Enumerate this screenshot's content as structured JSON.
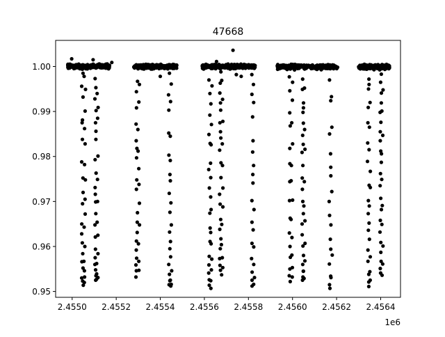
{
  "chart_data": {
    "type": "scatter",
    "title": "47668",
    "xlabel": "",
    "ylabel": "",
    "x_offset_label": "1e6",
    "xlim": [
      2454925,
      2456490
    ],
    "ylim": [
      0.9487,
      1.0058
    ],
    "xticks": [
      {
        "value": 2455000,
        "label": "2.4550"
      },
      {
        "value": 2455200,
        "label": "2.4552"
      },
      {
        "value": 2455400,
        "label": "2.4554"
      },
      {
        "value": 2455600,
        "label": "2.4556"
      },
      {
        "value": 2455800,
        "label": "2.4558"
      },
      {
        "value": 2456000,
        "label": "2.4560"
      },
      {
        "value": 2456200,
        "label": "2.4562"
      },
      {
        "value": 2456400,
        "label": "2.4564"
      }
    ],
    "yticks": [
      {
        "value": 0.95,
        "label": "0.95"
      },
      {
        "value": 0.96,
        "label": "0.96"
      },
      {
        "value": 0.97,
        "label": "0.97"
      },
      {
        "value": 0.98,
        "label": "0.98"
      },
      {
        "value": 0.99,
        "label": "0.99"
      },
      {
        "value": 1.0,
        "label": "1.00"
      }
    ],
    "grid": false,
    "marker_color": "#000000",
    "observing_seasons": [
      {
        "x_range": [
          2454980,
          2455170
        ],
        "y_center": 1.0
      },
      {
        "x_range": [
          2455280,
          2455475
        ],
        "y_center": 1.0
      },
      {
        "x_range": [
          2455590,
          2455830
        ],
        "y_center": 1.0
      },
      {
        "x_range": [
          2455930,
          2456205
        ],
        "y_center": 0.9999
      },
      {
        "x_range": [
          2456300,
          2456440
        ],
        "y_center": 0.9999
      }
    ],
    "outliers": [
      {
        "x": 2455730,
        "y": 1.0036
      },
      {
        "x": 2454998,
        "y": 1.0017
      },
      {
        "x": 2455095,
        "y": 1.0015
      },
      {
        "x": 2455180,
        "y": 1.0009
      },
      {
        "x": 2455655,
        "y": 1.0011
      },
      {
        "x": 2455767,
        "y": 0.9978
      },
      {
        "x": 2455745,
        "y": 0.9982
      },
      {
        "x": 2455400,
        "y": 0.9978
      }
    ],
    "transit_points": [
      {
        "x": 2455047,
        "y": [
          0.9985,
          0.9956,
          0.9932,
          0.9881,
          0.9875,
          0.9838,
          0.9788,
          0.9752,
          0.972,
          0.9695,
          0.965,
          0.9628,
          0.9608,
          0.9584,
          0.9566,
          0.9552,
          0.953,
          0.9523,
          0.9514
        ]
      },
      {
        "x": 2455057,
        "y": [
          0.9978,
          0.9949,
          0.9901,
          0.9862,
          0.9828,
          0.9782,
          0.9748,
          0.9705,
          0.9672,
          0.9643,
          0.96,
          0.9567,
          0.9546,
          0.9532,
          0.952
        ]
      },
      {
        "x": 2455107,
        "y": [
          0.9973,
          0.9953,
          0.9928,
          0.9902,
          0.9875,
          0.9856,
          0.9838,
          0.9793,
          0.9763,
          0.9731,
          0.9716,
          0.9699,
          0.9673,
          0.9648,
          0.9621,
          0.9594,
          0.9575,
          0.956,
          0.9548,
          0.9535,
          0.9527,
          0.9525
        ]
      },
      {
        "x": 2455114,
        "y": [
          0.994,
          0.9909,
          0.9885,
          0.9801,
          0.9749,
          0.97,
          0.9654,
          0.9625,
          0.9584,
          0.9562,
          0.9539,
          0.9531
        ]
      },
      {
        "x": 2455293,
        "y": [
          0.9967,
          0.9944,
          0.9908,
          0.9872,
          0.9835,
          0.9818,
          0.9797,
          0.9748,
          0.9727,
          0.9675,
          0.9654,
          0.9631,
          0.9612,
          0.9592,
          0.9574,
          0.9559,
          0.9546,
          0.9532
        ]
      },
      {
        "x": 2455302,
        "y": [
          0.996,
          0.9921,
          0.986,
          0.9812,
          0.9773,
          0.9738,
          0.9696,
          0.9648,
          0.9606,
          0.9567,
          0.9547
        ]
      },
      {
        "x": 2455440,
        "y": [
          0.9985,
          0.9937,
          0.9903,
          0.9852,
          0.9803,
          0.976,
          0.9718,
          0.9676,
          0.9632,
          0.9595,
          0.956,
          0.9538,
          0.9524,
          0.9515
        ]
      },
      {
        "x": 2455448,
        "y": [
          0.9961,
          0.9922,
          0.9845,
          0.9791,
          0.9746,
          0.9697,
          0.9648,
          0.9611,
          0.9577,
          0.9546,
          0.9525,
          0.9516,
          0.9512
        ]
      },
      {
        "x": 2455623,
        "y": [
          0.997,
          0.994,
          0.9892,
          0.9849,
          0.9829,
          0.9771,
          0.973,
          0.9674,
          0.9641,
          0.9611,
          0.9578,
          0.9559,
          0.9541,
          0.9526,
          0.9514
        ]
      },
      {
        "x": 2455631,
        "y": [
          0.9957,
          0.9917,
          0.9871,
          0.9826,
          0.9785,
          0.9753,
          0.971,
          0.9682,
          0.9631,
          0.9606,
          0.9572,
          0.9548,
          0.9524,
          0.9507
        ]
      },
      {
        "x": 2455672,
        "y": [
          0.9988,
          0.9963,
          0.9941,
          0.9919,
          0.9903,
          0.9875,
          0.9855,
          0.9841,
          0.9814,
          0.9786,
          0.9753,
          0.9716,
          0.9694,
          0.966,
          0.9638,
          0.9617,
          0.9595,
          0.9573,
          0.9558,
          0.9547
        ]
      },
      {
        "x": 2455681,
        "y": [
          0.9969,
          0.9927,
          0.9878,
          0.9828,
          0.978,
          0.973,
          0.9688,
          0.9649,
          0.9604,
          0.9575,
          0.9553,
          0.9537
        ]
      },
      {
        "x": 2455817,
        "y": [
          0.9982,
          0.9938,
          0.9888,
          0.981,
          0.976,
          0.9702,
          0.9654,
          0.9607,
          0.9573,
          0.9543,
          0.9525,
          0.9512
        ]
      },
      {
        "x": 2455824,
        "y": [
          0.996,
          0.992,
          0.9835,
          0.978,
          0.9741,
          0.9682,
          0.9637,
          0.9599,
          0.956,
          0.9531,
          0.9516
        ]
      },
      {
        "x": 2455988,
        "y": [
          0.9977,
          0.9946,
          0.9897,
          0.9868,
          0.9818,
          0.9784,
          0.9744,
          0.9702,
          0.9663,
          0.963,
          0.96,
          0.9576,
          0.955,
          0.9535,
          0.9522
        ]
      },
      {
        "x": 2455997,
        "y": [
          0.9965,
          0.9925,
          0.9875,
          0.9828,
          0.978,
          0.9746,
          0.9703,
          0.966,
          0.962,
          0.9581,
          0.9553,
          0.9532
        ]
      },
      {
        "x": 2456047,
        "y": [
          0.9972,
          0.9949,
          0.9919,
          0.9898,
          0.9874,
          0.9847,
          0.9827,
          0.9809,
          0.978,
          0.9752,
          0.9727,
          0.97,
          0.9673,
          0.965,
          0.9626,
          0.9601,
          0.958,
          0.956,
          0.9545,
          0.9532,
          0.9525
        ]
      },
      {
        "x": 2456053,
        "y": [
          0.9952,
          0.9908,
          0.986,
          0.9816,
          0.9744,
          0.969,
          0.9657,
          0.9607,
          0.9568,
          0.9545,
          0.9529
        ]
      },
      {
        "x": 2456170,
        "y": [
          0.997,
          0.9924,
          0.985,
          0.9806,
          0.9757,
          0.97,
          0.9669,
          0.9616,
          0.9594,
          0.9561,
          0.9534,
          0.9515,
          0.9507
        ]
      },
      {
        "x": 2456177,
        "y": [
          0.9933,
          0.9865,
          0.9776,
          0.9722,
          0.9648,
          0.9581,
          0.9531
        ]
      },
      {
        "x": 2456344,
        "y": [
          0.9972,
          0.995,
          0.9909,
          0.9875,
          0.983,
          0.9789,
          0.9736,
          0.9702,
          0.9673,
          0.9636,
          0.9592,
          0.9567,
          0.9538,
          0.9521,
          0.9511
        ]
      },
      {
        "x": 2456351,
        "y": [
          0.996,
          0.992,
          0.9865,
          0.9815,
          0.9767,
          0.9731,
          0.969,
          0.9652,
          0.9616,
          0.9577,
          0.9544,
          0.9525
        ]
      },
      {
        "x": 2456400,
        "y": [
          0.9983,
          0.9965,
          0.9941,
          0.9919,
          0.9898,
          0.9876,
          0.9855,
          0.9835,
          0.9812,
          0.9787,
          0.9762,
          0.9735,
          0.9707,
          0.9682,
          0.9658,
          0.9632,
          0.9609,
          0.9587,
          0.9567,
          0.9551,
          0.9541
        ]
      },
      {
        "x": 2456407,
        "y": [
          0.9948,
          0.9901,
          0.9847,
          0.9806,
          0.9749,
          0.9691,
          0.9649,
          0.9601,
          0.9561,
          0.9536
        ]
      }
    ]
  }
}
